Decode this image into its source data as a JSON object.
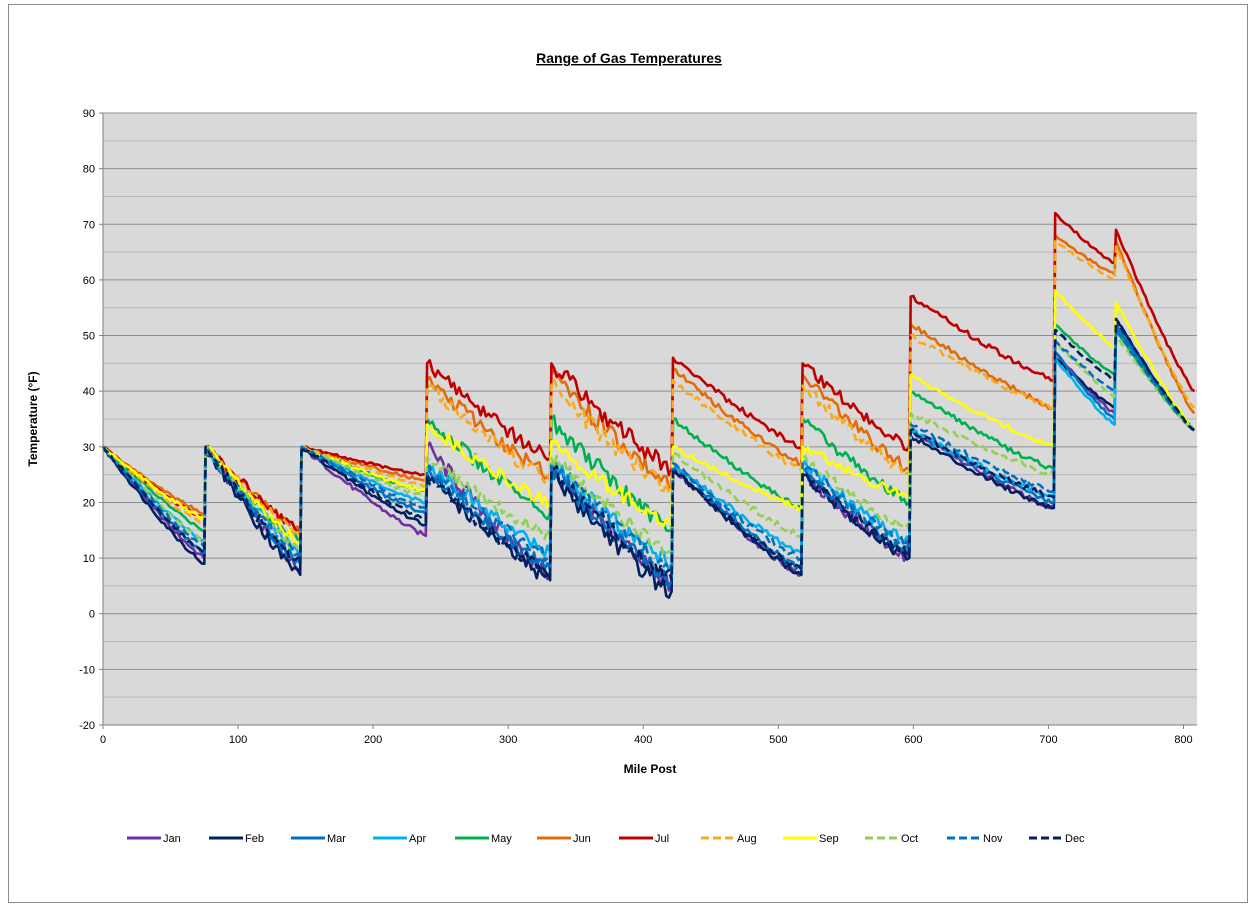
{
  "chart_data": {
    "type": "line",
    "title": "Range of Gas Temperatures",
    "xlabel": "Mile Post",
    "ylabel": "Temperature (°F)",
    "xlim": [
      0,
      810
    ],
    "ylim": [
      -20,
      90
    ],
    "x_ticks": [
      "0",
      "100",
      "200",
      "300",
      "400",
      "500",
      "600",
      "700",
      "800"
    ],
    "y_ticks": [
      "-20",
      "-10",
      "0",
      "10",
      "20",
      "30",
      "40",
      "50",
      "60",
      "70",
      "80",
      "90"
    ],
    "grid": true,
    "legend_position": "bottom",
    "plot_background": "#d9d9d9",
    "segment_starts": [
      0,
      76,
      147,
      240,
      332,
      422,
      518,
      598,
      705,
      750
    ],
    "segment_ends": [
      75,
      146,
      239,
      331,
      421,
      517,
      597,
      704,
      749,
      808
    ],
    "series": [
      {
        "name": "Jan",
        "color": "#7030a0",
        "dash": false,
        "start": [
          30,
          30,
          30,
          30,
          26,
          26,
          25,
          33,
          47,
          52
        ],
        "end": [
          10,
          8,
          14,
          7,
          5,
          7,
          10,
          19,
          36,
          33
        ]
      },
      {
        "name": "Feb",
        "color": "#002060",
        "dash": false,
        "start": [
          30,
          30,
          30,
          25,
          25,
          26,
          25,
          32,
          46,
          53
        ],
        "end": [
          9,
          7,
          16,
          6,
          4,
          7,
          10,
          19,
          37,
          33
        ]
      },
      {
        "name": "Mar",
        "color": "#0070c0",
        "dash": false,
        "start": [
          30,
          30,
          30,
          26,
          26,
          27,
          26,
          33,
          47,
          52
        ],
        "end": [
          11,
          9,
          18,
          8,
          6,
          8,
          11,
          20,
          35,
          33
        ]
      },
      {
        "name": "Apr",
        "color": "#00b0f0",
        "dash": false,
        "start": [
          30,
          30,
          30,
          27,
          27,
          27,
          27,
          33,
          46,
          51
        ],
        "end": [
          13,
          11,
          20,
          11,
          9,
          11,
          13,
          21,
          34,
          33
        ]
      },
      {
        "name": "May",
        "color": "#00b050",
        "dash": false,
        "start": [
          30,
          30,
          30,
          35,
          35,
          35,
          35,
          40,
          52,
          51
        ],
        "end": [
          15,
          13,
          22,
          18,
          15,
          19,
          20,
          26,
          43,
          33
        ]
      },
      {
        "name": "Jun",
        "color": "#e36c09",
        "dash": false,
        "start": [
          30,
          30,
          30,
          42,
          43,
          44,
          43,
          52,
          68,
          67
        ],
        "end": [
          18,
          15,
          24,
          25,
          23,
          27,
          26,
          37,
          61,
          36
        ]
      },
      {
        "name": "Jul",
        "color": "#c00000",
        "dash": false,
        "start": [
          30,
          30,
          30,
          45,
          45,
          46,
          45,
          57,
          72,
          69
        ],
        "end": [
          17,
          15,
          25,
          28,
          26,
          30,
          30,
          42,
          63,
          40
        ]
      },
      {
        "name": "Aug",
        "color": "#f9a919",
        "dash": true,
        "start": [
          30,
          30,
          30,
          41,
          41,
          42,
          41,
          50,
          67,
          66
        ],
        "end": [
          16,
          14,
          23,
          24,
          22,
          26,
          25,
          37,
          60,
          37
        ]
      },
      {
        "name": "Sep",
        "color": "#ffff00",
        "dash": false,
        "start": [
          30,
          30,
          30,
          34,
          31,
          30,
          30,
          43,
          58,
          56
        ],
        "end": [
          17,
          13,
          22,
          20,
          16,
          19,
          21,
          30,
          48,
          33
        ]
      },
      {
        "name": "Oct",
        "color": "#92d050",
        "dash": true,
        "start": [
          30,
          30,
          30,
          28,
          28,
          29,
          28,
          36,
          49,
          50
        ],
        "end": [
          13,
          11,
          21,
          14,
          11,
          14,
          15,
          25,
          39,
          33
        ]
      },
      {
        "name": "Nov",
        "color": "#0070c0",
        "dash": true,
        "start": [
          30,
          30,
          30,
          26,
          27,
          27,
          27,
          34,
          49,
          51
        ],
        "end": [
          12,
          10,
          19,
          10,
          8,
          10,
          12,
          22,
          40,
          33
        ]
      },
      {
        "name": "Dec",
        "color": "#002060",
        "dash": true,
        "start": [
          30,
          30,
          30,
          25,
          26,
          26,
          25,
          33,
          51,
          53
        ],
        "end": [
          11,
          9,
          17,
          7,
          6,
          8,
          11,
          21,
          42,
          33
        ]
      }
    ]
  }
}
